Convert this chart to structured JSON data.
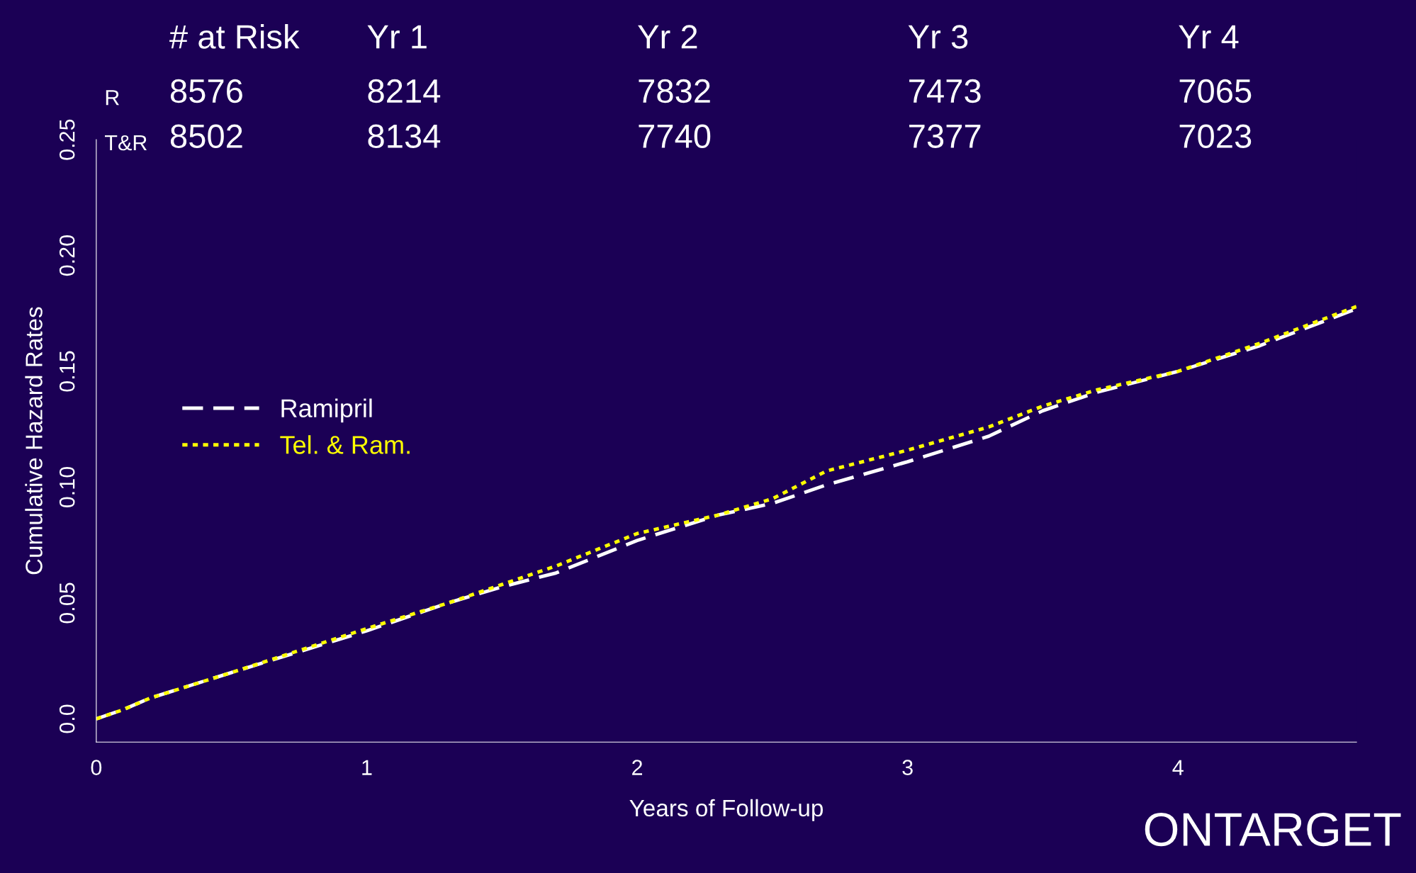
{
  "chart_data": {
    "type": "line",
    "xlabel": "Years of Follow-up",
    "ylabel": "Cumulative Hazard Rates",
    "xlim": [
      0,
      4.66
    ],
    "ylim": [
      -0.01,
      0.25
    ],
    "xticks": [
      0,
      1,
      2,
      3,
      4
    ],
    "yticks": [
      {
        "value": 0,
        "label": "0.0"
      },
      0.05,
      {
        "value": 0.1,
        "label": "0.10"
      },
      0.15,
      {
        "value": 0.2,
        "label": "0.20"
      },
      0.25
    ],
    "grid": false,
    "legend": "left",
    "series": [
      {
        "name": "Ramipril",
        "color": "#ffffff",
        "line_style": "dashed",
        "x": [
          0,
          0.1,
          0.2,
          0.5,
          1,
          1.3,
          1.5,
          1.7,
          2,
          2.3,
          2.5,
          2.7,
          3,
          3.3,
          3.5,
          3.7,
          4,
          4.3,
          4.66
        ],
        "values": [
          0,
          0.004,
          0.009,
          0.02,
          0.038,
          0.05,
          0.057,
          0.063,
          0.077,
          0.088,
          0.093,
          0.101,
          0.111,
          0.122,
          0.133,
          0.141,
          0.15,
          0.161,
          0.177
        ]
      },
      {
        "name": "Tel. & Ram.",
        "color": "#ffff00",
        "line_style": "dotted",
        "x": [
          0,
          0.1,
          0.2,
          0.5,
          1,
          1.3,
          1.5,
          1.7,
          2,
          2.3,
          2.5,
          2.7,
          3,
          3.3,
          3.5,
          3.7,
          4,
          4.3,
          4.66
        ],
        "values": [
          0,
          0.004,
          0.009,
          0.02,
          0.039,
          0.05,
          0.058,
          0.066,
          0.08,
          0.088,
          0.095,
          0.107,
          0.116,
          0.126,
          0.135,
          0.142,
          0.15,
          0.162,
          0.178
        ]
      }
    ],
    "annotations": [
      "# at Risk",
      "Yr 1",
      "Yr 2",
      "Yr 3",
      "Yr 4",
      "R",
      "8576",
      "8214",
      "7832",
      "7473",
      "7065",
      "T&R",
      "8502",
      "8134",
      "7740",
      "7377",
      "7023",
      "ONTARGET"
    ]
  }
}
